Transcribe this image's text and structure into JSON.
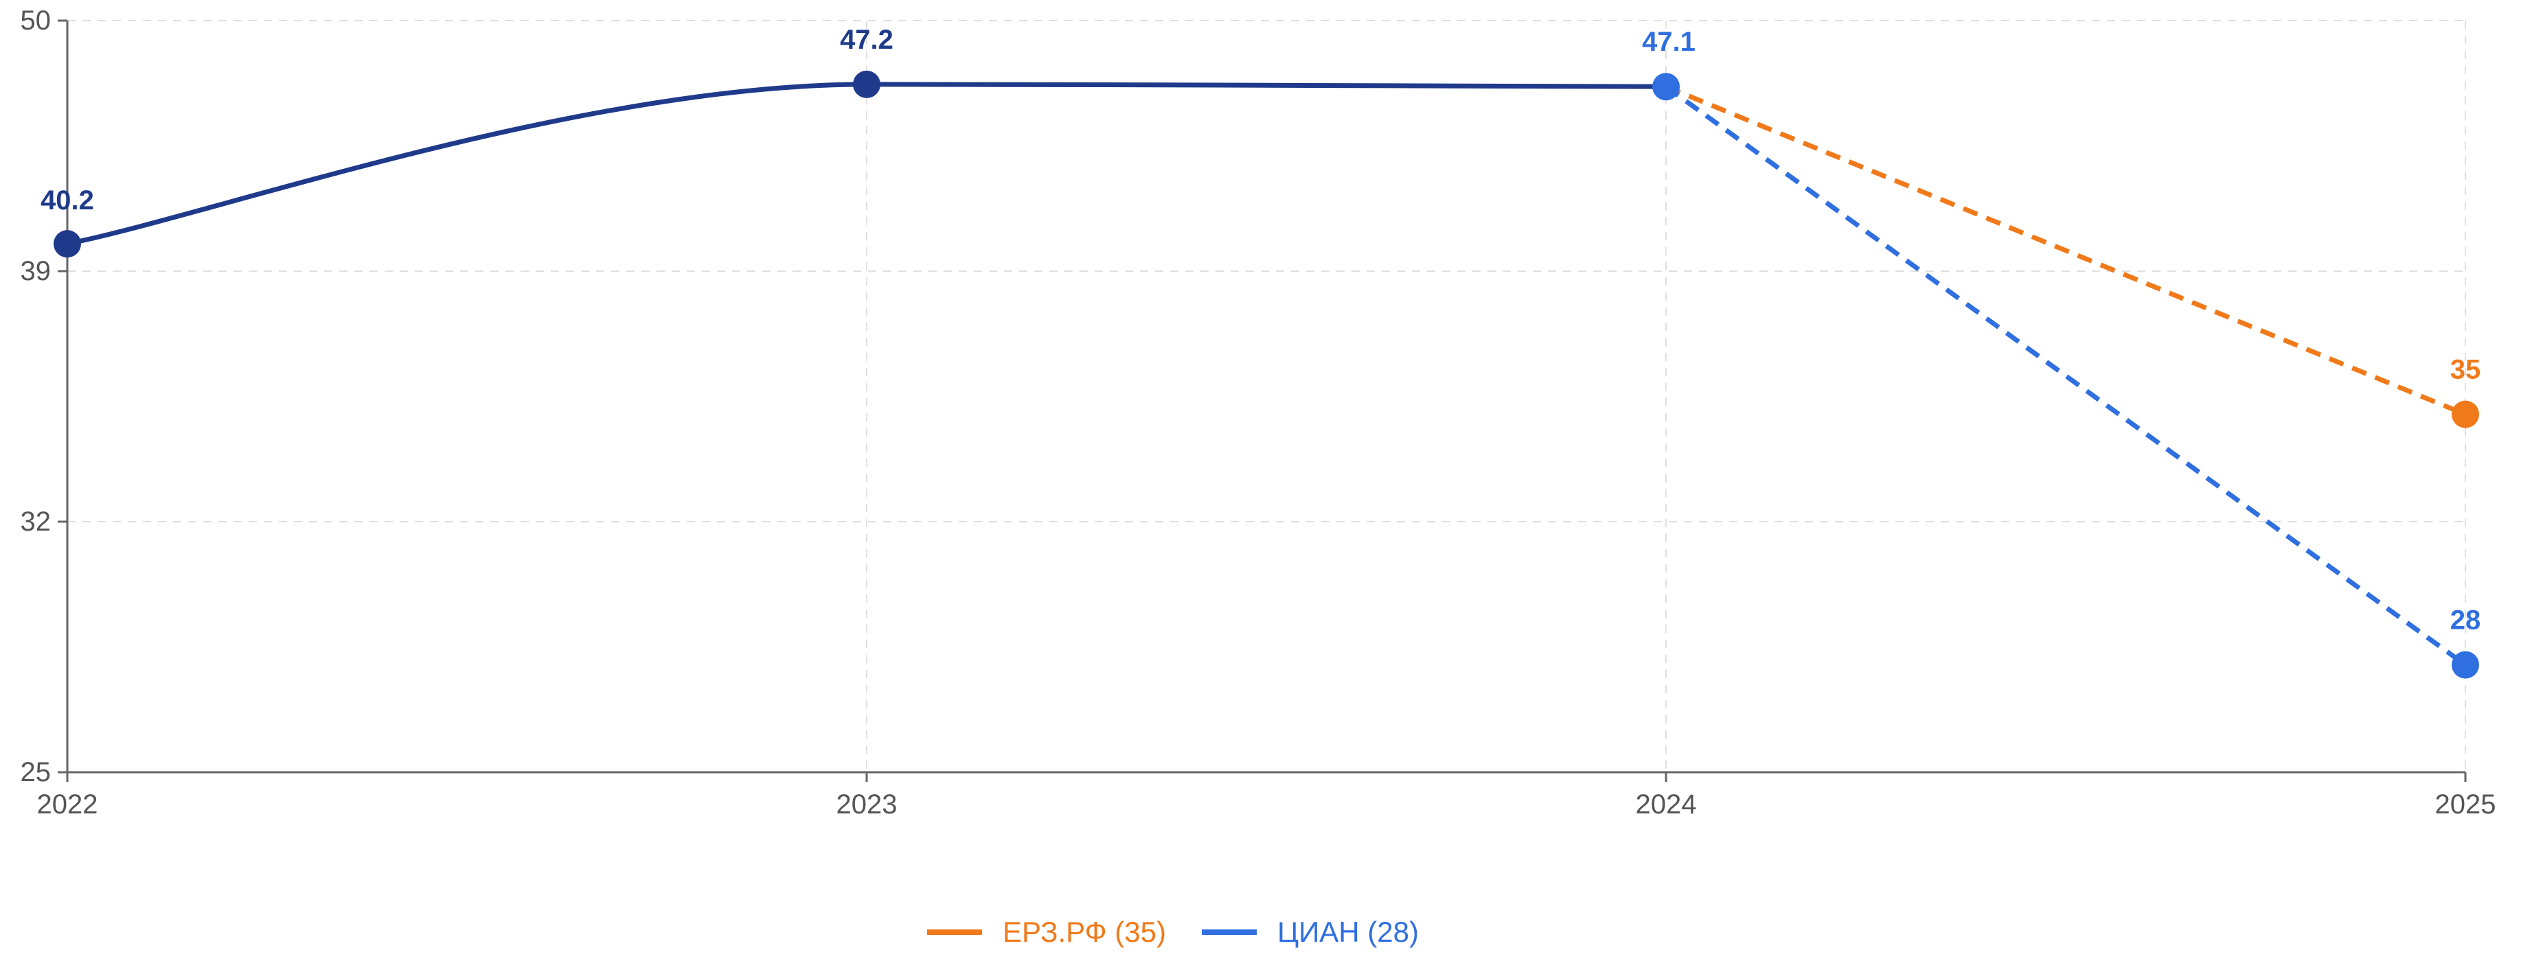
{
  "chart_data": {
    "type": "line",
    "title": "",
    "xlabel": "",
    "ylabel": "",
    "x": [
      "2022",
      "2023",
      "2024",
      "2025"
    ],
    "xlim": [
      2022,
      2025
    ],
    "ylim": [
      25,
      50
    ],
    "y_ticks": [
      "25",
      "32",
      "39",
      "50"
    ],
    "x_ticks": [
      "2022",
      "2023",
      "2024",
      "2025"
    ],
    "grid": true,
    "legend_position": "bottom-center",
    "series": [
      {
        "key": "actual",
        "name": "",
        "color": "#1f3a8a",
        "style": "solid-smooth",
        "points": [
          {
            "x": 2022,
            "y": 40.2,
            "label": "40.2",
            "label_color": "#1f3a8a",
            "marker_color": "#1f3a8a"
          },
          {
            "x": 2023,
            "y": 47.2,
            "label": "47.2",
            "label_color": "#1f3a8a",
            "marker_color": "#1f3a8a"
          },
          {
            "x": 2024,
            "y": 47.1,
            "label": "47.1",
            "label_color": "#2f6fe0",
            "marker_color": "#2f6fe0"
          }
        ]
      },
      {
        "key": "erz",
        "name": "ЕРЗ.РФ (35)",
        "color": "#f07a1a",
        "style": "dashed",
        "points": [
          {
            "x": 2024,
            "y": 47.1
          },
          {
            "x": 2025,
            "y": 35,
            "label": "35",
            "label_color": "#f07a1a",
            "marker_color": "#f07a1a"
          }
        ]
      },
      {
        "key": "cian",
        "name": "ЦИАН (28)",
        "color": "#2f6fe0",
        "style": "dashed",
        "points": [
          {
            "x": 2024,
            "y": 47.1
          },
          {
            "x": 2025,
            "y": 28,
            "label": "28",
            "label_color": "#2f6fe0",
            "marker_color": "#2f6fe0"
          }
        ]
      }
    ]
  }
}
